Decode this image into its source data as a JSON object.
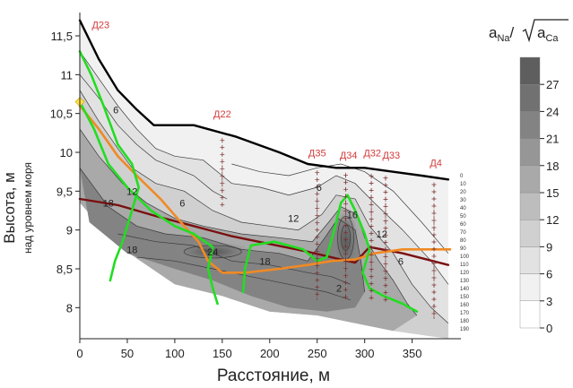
{
  "chart_data": {
    "type": "contour",
    "xlabel": "Расстояние, м",
    "ylabel": "Высота, м",
    "ylabel_sub": "над уровнем моря",
    "xlim": [
      0,
      390
    ],
    "ylim": [
      7.6,
      11.8
    ],
    "x_ticks": [
      0,
      50,
      100,
      150,
      200,
      250,
      300,
      350
    ],
    "y_ticks": [
      {
        "value": 8,
        "label": "8"
      },
      {
        "value": 8.5,
        "label": "8,5"
      },
      {
        "value": 9,
        "label": "9"
      },
      {
        "value": 9.5,
        "label": "9,5"
      },
      {
        "value": 10,
        "label": "10"
      },
      {
        "value": 10.5,
        "label": "10,5"
      },
      {
        "value": 11,
        "label": "11"
      },
      {
        "value": 11.5,
        "label": "11,5"
      }
    ],
    "colorbar": {
      "title": "aNa/√aCa",
      "title_parts": {
        "a1": "a",
        "sub1": "Na",
        "slash": "/",
        "a2": "a",
        "sub2": "Ca"
      },
      "ticks": [
        0,
        3,
        6,
        9,
        12,
        15,
        18,
        21,
        24,
        27
      ],
      "colors": [
        "#ffffff",
        "#f1f1f1",
        "#e2e2e2",
        "#d0d0d0",
        "#bdbdbd",
        "#a9a9a9",
        "#969696",
        "#838383",
        "#717171",
        "#5e5e5e"
      ]
    },
    "contour_labels": [
      {
        "text": "6",
        "x": 38,
        "y": 10.55
      },
      {
        "text": "6",
        "x": 108,
        "y": 9.35
      },
      {
        "text": "6",
        "x": 252,
        "y": 9.55
      },
      {
        "text": "6",
        "x": 338,
        "y": 8.6
      },
      {
        "text": "12",
        "x": 55,
        "y": 9.5
      },
      {
        "text": "12",
        "x": 225,
        "y": 9.15
      },
      {
        "text": "12",
        "x": 318,
        "y": 8.95
      },
      {
        "text": "18",
        "x": 30,
        "y": 9.35
      },
      {
        "text": "18",
        "x": 55,
        "y": 8.75
      },
      {
        "text": "18",
        "x": 195,
        "y": 8.6
      },
      {
        "text": "24",
        "x": 140,
        "y": 8.72
      },
      {
        "text": "16",
        "x": 287,
        "y": 9.2
      },
      {
        "text": "2",
        "x": 273,
        "y": 8.25
      }
    ],
    "sites": [
      {
        "name": "Д23",
        "x": 2,
        "label_x": 22,
        "label_y": 11.6,
        "depth_marks": false
      },
      {
        "name": "Д22",
        "x": 150,
        "label_x": 150,
        "label_y": 10.45,
        "depth_marks": true
      },
      {
        "name": "Д35",
        "x": 250,
        "label_x": 250,
        "label_y": 9.95,
        "depth_marks": true
      },
      {
        "name": "Д34",
        "x": 280,
        "label_x": 283,
        "label_y": 9.92,
        "depth_marks": true
      },
      {
        "name": "Д32",
        "x": 307,
        "label_x": 308,
        "label_y": 9.95,
        "depth_marks": true
      },
      {
        "name": "Д33",
        "x": 322,
        "label_x": 328,
        "label_y": 9.92,
        "depth_marks": true
      },
      {
        "name": "Д4",
        "x": 373,
        "label_x": 375,
        "label_y": 9.82,
        "depth_marks": true
      }
    ],
    "depth_scale": {
      "labels": [
        "0",
        "10",
        "20",
        "30",
        "40",
        "50",
        "60",
        "70",
        "80",
        "90",
        "100",
        "110",
        "120",
        "130",
        "140",
        "150",
        "160",
        "170",
        "180",
        "190"
      ]
    },
    "series": [
      {
        "role": "ground-surface",
        "color": "#000000",
        "points": [
          [
            0,
            11.7
          ],
          [
            20,
            11.2
          ],
          [
            40,
            10.8
          ],
          [
            60,
            10.55
          ],
          [
            78,
            10.35
          ],
          [
            120,
            10.35
          ],
          [
            165,
            10.2
          ],
          [
            210,
            10.0
          ],
          [
            240,
            9.85
          ],
          [
            270,
            9.8
          ],
          [
            300,
            9.8
          ],
          [
            330,
            9.75
          ],
          [
            360,
            9.7
          ],
          [
            388,
            9.65
          ]
        ]
      },
      {
        "role": "dark-red-line",
        "color": "#7a1010",
        "points": [
          [
            0,
            9.4
          ],
          [
            40,
            9.32
          ],
          [
            80,
            9.18
          ],
          [
            120,
            9.05
          ],
          [
            160,
            8.92
          ],
          [
            200,
            8.82
          ],
          [
            240,
            8.72
          ],
          [
            275,
            8.62
          ],
          [
            290,
            8.58
          ],
          [
            305,
            8.78
          ],
          [
            340,
            8.7
          ],
          [
            388,
            8.55
          ]
        ]
      },
      {
        "role": "orange-line",
        "color": "#f08a24",
        "points": [
          [
            0,
            10.6
          ],
          [
            20,
            10.3
          ],
          [
            40,
            9.95
          ],
          [
            60,
            9.7
          ],
          [
            85,
            9.4
          ],
          [
            110,
            9.05
          ],
          [
            125,
            8.85
          ],
          [
            135,
            8.6
          ],
          [
            150,
            8.45
          ],
          [
            175,
            8.45
          ],
          [
            210,
            8.5
          ],
          [
            240,
            8.55
          ],
          [
            265,
            8.6
          ],
          [
            290,
            8.62
          ],
          [
            310,
            8.7
          ],
          [
            340,
            8.75
          ],
          [
            365,
            8.75
          ],
          [
            390,
            8.75
          ]
        ]
      },
      {
        "role": "green-line-1",
        "color": "#22dd22",
        "points": [
          [
            0,
            11.3
          ],
          [
            12,
            11.0
          ],
          [
            25,
            10.6
          ],
          [
            40,
            10.1
          ],
          [
            55,
            9.85
          ],
          [
            62,
            9.55
          ],
          [
            55,
            9.25
          ],
          [
            45,
            8.85
          ],
          [
            37,
            8.6
          ],
          [
            32,
            8.35
          ]
        ]
      },
      {
        "role": "green-line-2",
        "color": "#22dd22",
        "points": [
          [
            0,
            10.65
          ],
          [
            15,
            10.3
          ],
          [
            30,
            9.85
          ],
          [
            50,
            9.55
          ],
          [
            75,
            9.25
          ],
          [
            100,
            9.05
          ],
          [
            120,
            8.95
          ],
          [
            140,
            8.78
          ],
          [
            135,
            8.5
          ],
          [
            140,
            8.25
          ],
          [
            145,
            8.05
          ]
        ]
      },
      {
        "role": "green-line-3",
        "color": "#22dd22",
        "points": [
          [
            172,
            8.2
          ],
          [
            174,
            8.5
          ],
          [
            180,
            8.8
          ],
          [
            205,
            8.85
          ],
          [
            235,
            8.75
          ],
          [
            250,
            8.6
          ],
          [
            260,
            8.65
          ],
          [
            268,
            9.0
          ],
          [
            275,
            9.35
          ],
          [
            282,
            9.45
          ],
          [
            290,
            9.25
          ],
          [
            300,
            8.95
          ],
          [
            305,
            8.75
          ],
          [
            298,
            8.45
          ],
          [
            305,
            8.25
          ],
          [
            320,
            8.15
          ],
          [
            340,
            8.05
          ],
          [
            355,
            7.95
          ]
        ]
      }
    ],
    "marker": {
      "x": 0,
      "y": 10.65,
      "color": "#ffe24a"
    }
  }
}
